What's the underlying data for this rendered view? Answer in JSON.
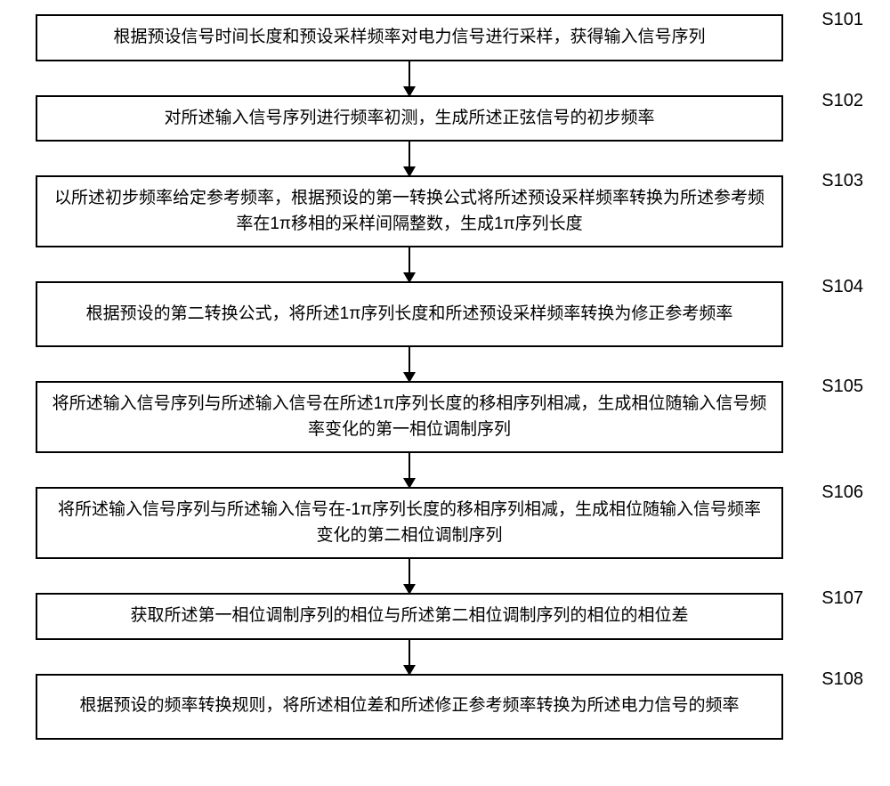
{
  "flowchart": {
    "background_color": "#ffffff",
    "border_color": "#000000",
    "text_color": "#000000",
    "font_size": 19,
    "label_font_size": 20,
    "border_width": 2,
    "arrow_width": 2,
    "steps": [
      {
        "id": "S101",
        "text": "根据预设信号时间长度和预设采样频率对电力信号进行采样，获得输入信号序列",
        "lines": 1
      },
      {
        "id": "S102",
        "text": "对所述输入信号序列进行频率初测，生成所述正弦信号的初步频率",
        "lines": 1
      },
      {
        "id": "S103",
        "text": "以所述初步频率给定参考频率，根据预设的第一转换公式将所述预设采样频率转换为所述参考频率在1π移相的采样间隔整数，生成1π序列长度",
        "lines": 2
      },
      {
        "id": "S104",
        "text": "根据预设的第二转换公式，将所述1π序列长度和所述预设采样频率转换为修正参考频率",
        "lines": 2
      },
      {
        "id": "S105",
        "text": "将所述输入信号序列与所述输入信号在所述1π序列长度的移相序列相减，生成相位随输入信号频率变化的第一相位调制序列",
        "lines": 2
      },
      {
        "id": "S106",
        "text": "将所述输入信号序列与所述输入信号在-1π序列长度的移相序列相减，生成相位随输入信号频率变化的第二相位调制序列",
        "lines": 2
      },
      {
        "id": "S107",
        "text": "获取所述第一相位调制序列的相位与所述第二相位调制序列的相位的相位差",
        "lines": 1
      },
      {
        "id": "S108",
        "text": "根据预设的频率转换规则，将所述相位差和所述修正参考频率转换为所述电力信号的频率",
        "lines": 2
      }
    ]
  }
}
